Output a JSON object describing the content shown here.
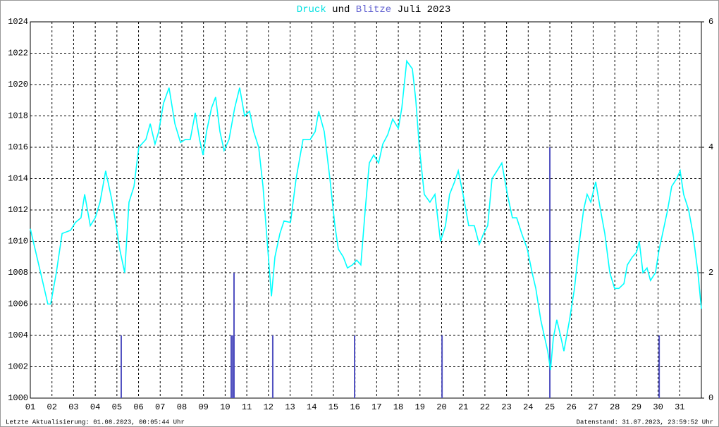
{
  "chart_data": {
    "type": "line",
    "title_parts": [
      "und",
      "Juli 2023"
    ],
    "footer_left": "Letzte Aktualisierung: 01.08.2023, 00:05:44 Uhr",
    "footer_right": "Datenstand: 31.07.2023, 23:59:52 Uhr",
    "xlim": [
      1,
      32
    ],
    "xticks": [
      {
        "value": 1,
        "label": "01"
      },
      {
        "value": 2,
        "label": "02"
      },
      {
        "value": 3,
        "label": "03"
      },
      {
        "value": 4,
        "label": "04"
      },
      {
        "value": 5,
        "label": "05"
      },
      {
        "value": 6,
        "label": "06"
      },
      {
        "value": 7,
        "label": "07"
      },
      {
        "value": 8,
        "label": "08"
      },
      {
        "value": 9,
        "label": "09"
      },
      10,
      11,
      12,
      13,
      14,
      15,
      16,
      17,
      18,
      19,
      20,
      21,
      22,
      23,
      24,
      25,
      26,
      27,
      28,
      29,
      30,
      31
    ],
    "ylim": [
      1000,
      1024
    ],
    "yticks": [
      1000,
      1002,
      1004,
      1006,
      1008,
      1010,
      1012,
      1014,
      1016,
      1018,
      1020,
      1022,
      1024
    ],
    "y2lim": [
      0,
      6
    ],
    "y2ticks": [
      0,
      2,
      4,
      6
    ],
    "grid": true,
    "series": [
      {
        "name": "Druck",
        "color": "#00ffff",
        "type": "line",
        "x": [
          1.0,
          1.39,
          1.81,
          1.94,
          2.2,
          2.47,
          2.86,
          3.08,
          3.34,
          3.51,
          3.77,
          4.0,
          4.22,
          4.48,
          4.74,
          4.97,
          5.13,
          5.36,
          5.56,
          5.79,
          6.01,
          6.34,
          6.54,
          6.76,
          6.93,
          7.15,
          7.41,
          7.68,
          7.94,
          8.16,
          8.39,
          8.62,
          8.82,
          8.98,
          9.14,
          9.37,
          9.56,
          9.76,
          9.95,
          10.18,
          10.44,
          10.67,
          10.9,
          11.13,
          11.32,
          11.55,
          11.75,
          11.97,
          12.14,
          12.3,
          12.53,
          12.72,
          13.02,
          13.28,
          13.6,
          13.93,
          14.16,
          14.32,
          14.58,
          14.84,
          15.07,
          15.23,
          15.46,
          15.65,
          15.88,
          16.08,
          16.27,
          16.47,
          16.66,
          16.86,
          17.09,
          17.28,
          17.51,
          17.74,
          18.0,
          18.16,
          18.39,
          18.65,
          18.81,
          18.97,
          19.2,
          19.46,
          19.69,
          19.95,
          20.18,
          20.37,
          20.6,
          20.77,
          20.99,
          21.25,
          21.51,
          21.74,
          21.94,
          22.13,
          22.33,
          22.56,
          22.78,
          23.04,
          23.27,
          23.47,
          23.7,
          23.96,
          24.18,
          24.35,
          24.58,
          24.74,
          24.9,
          25.03,
          25.16,
          25.32,
          25.49,
          25.65,
          25.91,
          26.14,
          26.37,
          26.56,
          26.72,
          26.89,
          27.12,
          27.34,
          27.54,
          27.77,
          27.99,
          28.19,
          28.42,
          28.58,
          28.81,
          29.0,
          29.13,
          29.3,
          29.49,
          29.65,
          29.88,
          30.05,
          30.21,
          30.44,
          30.63,
          30.86,
          31.02,
          31.18,
          31.41,
          31.61,
          31.84,
          32.0
        ],
        "values": [
          1010.8,
          1008.5,
          1006,
          1006,
          1008,
          1010.5,
          1010.7,
          1011.2,
          1011.5,
          1013,
          1011,
          1011.5,
          1012.5,
          1014.5,
          1012.8,
          1011,
          1009.5,
          1008,
          1012.5,
          1013.5,
          1016,
          1016.5,
          1017.5,
          1016.2,
          1017,
          1018.8,
          1019.8,
          1017.5,
          1016.3,
          1016.5,
          1016.5,
          1018.2,
          1016.5,
          1015.5,
          1017,
          1018.5,
          1019.2,
          1017,
          1015.8,
          1016.5,
          1018.5,
          1019.8,
          1018,
          1018.3,
          1017,
          1016,
          1013.5,
          1009.5,
          1006.5,
          1009,
          1010.5,
          1011.3,
          1011.2,
          1014,
          1016.5,
          1016.5,
          1017,
          1018.3,
          1017,
          1014,
          1011,
          1009.5,
          1009,
          1008.3,
          1008.5,
          1008.8,
          1008.5,
          1012,
          1015,
          1015.5,
          1015,
          1016.2,
          1016.8,
          1017.8,
          1017.2,
          1018.5,
          1021.5,
          1021,
          1019,
          1016,
          1013,
          1012.5,
          1013,
          1010,
          1011,
          1013,
          1013.8,
          1014.5,
          1013,
          1011,
          1011,
          1009.8,
          1010.5,
          1011,
          1014,
          1014.5,
          1015,
          1013,
          1011.5,
          1011.5,
          1010.5,
          1009.5,
          1008,
          1007,
          1005,
          1004,
          1003,
          1001.8,
          1003.8,
          1005,
          1004,
          1003,
          1005,
          1007,
          1010,
          1012,
          1013,
          1012.5,
          1013.8,
          1012,
          1010.5,
          1008,
          1007,
          1007,
          1007.3,
          1008.5,
          1009,
          1009.3,
          1010,
          1008,
          1008.3,
          1007.5,
          1008,
          1009.5,
          1010.5,
          1012,
          1013.5,
          1014,
          1014.5,
          1013,
          1012,
          1010.5,
          1008,
          1005.7
        ]
      },
      {
        "name": "Blitze",
        "color": "#5050c0",
        "type": "bar",
        "axis": "y2",
        "x": [
          5.2,
          10.28,
          10.35,
          10.41,
          12.2,
          15.98,
          20.02,
          25.0,
          30.05
        ],
        "values": [
          1,
          1,
          1,
          2,
          1,
          1,
          1,
          4,
          1
        ]
      }
    ]
  }
}
